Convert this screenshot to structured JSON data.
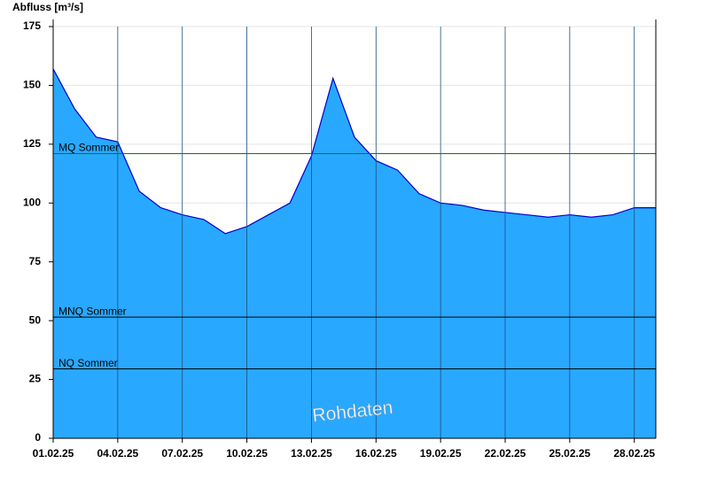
{
  "chart_data": {
    "type": "area",
    "y_label": "Abfluss [m³/s]",
    "watermark": "Rohdaten",
    "categories": [
      "01.02.25",
      null,
      null,
      "04.02.25",
      null,
      null,
      "07.02.25",
      null,
      null,
      "10.02.25",
      null,
      null,
      "13.02.25",
      null,
      null,
      "16.02.25",
      null,
      null,
      "19.02.25",
      null,
      null,
      "22.02.25",
      null,
      null,
      "25.02.25",
      null,
      null,
      "28.02.25"
    ],
    "series": [
      {
        "name": "Abfluss",
        "color": "#29a8ff",
        "line_color": "#0000cc",
        "values": [
          157,
          140,
          128,
          126,
          105,
          98,
          95,
          93,
          87,
          90,
          95,
          100,
          120,
          153,
          128,
          118,
          114,
          104,
          100,
          99,
          97,
          96,
          95,
          94,
          95,
          94,
          95,
          98
        ]
      }
    ],
    "reference_lines": [
      {
        "label": "MQ Sommer",
        "value": 121,
        "color": "#008000"
      },
      {
        "label": "MNQ Sommer",
        "value": 51.5,
        "color": "#000000"
      },
      {
        "label": "NQ Sommer",
        "value": 29.5,
        "color": "#000000"
      }
    ],
    "ylim": [
      0,
      175
    ],
    "yticks": [
      0,
      25,
      50,
      75,
      100,
      125,
      150,
      175
    ],
    "grid": true
  }
}
